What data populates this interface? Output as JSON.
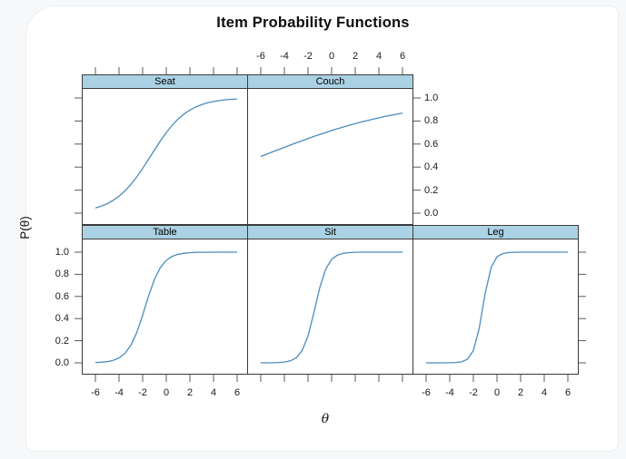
{
  "chart_data": {
    "type": "line",
    "title": "Item Probability Functions",
    "xlabel": "θ",
    "ylabel": "P(θ)",
    "x_tick_labels": [
      "-6",
      "-4",
      "-2",
      "0",
      "2",
      "4",
      "6"
    ],
    "x_tick_values": [
      -6,
      -4,
      -2,
      0,
      2,
      4,
      6
    ],
    "y_tick_labels_top_to_bottom": [
      "1.0",
      "0.8",
      "0.6",
      "0.4",
      "0.2",
      "0.0"
    ],
    "y_tick_values_top_to_bottom": [
      1.0,
      0.8,
      0.6,
      0.4,
      0.2,
      0.0
    ],
    "xlim": [
      -7.1,
      7.1
    ],
    "ylim": [
      -0.11,
      1.11
    ],
    "grid": false,
    "legend": "none",
    "layout": {
      "rows": 2,
      "cols": 3,
      "top_row_panels": [
        "Seat",
        "Couch"
      ],
      "bottom_row_panels": [
        "Table",
        "Sit",
        "Leg"
      ],
      "top_axis_labeled_column": 1,
      "bottom_axis_labeled_columns": [
        0,
        2
      ]
    },
    "strip_fill": "#abd2e4",
    "line_color": "#4b8cbc",
    "theta": [
      -6,
      -5.5,
      -5,
      -4.5,
      -4,
      -3.5,
      -3,
      -2.5,
      -2,
      -1.5,
      -1,
      -0.5,
      0,
      0.5,
      1,
      1.5,
      2,
      2.5,
      3,
      3.5,
      4,
      4.5,
      5,
      5.5,
      6
    ],
    "panels": [
      {
        "name": "Seat",
        "row": 0,
        "col": 0,
        "p": [
          0.045,
          0.061,
          0.083,
          0.111,
          0.147,
          0.193,
          0.249,
          0.314,
          0.388,
          0.468,
          0.548,
          0.627,
          0.7,
          0.763,
          0.817,
          0.861,
          0.895,
          0.922,
          0.942,
          0.958,
          0.969,
          0.977,
          0.984,
          0.988,
          0.991
        ]
      },
      {
        "name": "Couch",
        "row": 0,
        "col": 1,
        "p": [
          0.492,
          0.512,
          0.532,
          0.552,
          0.571,
          0.591,
          0.61,
          0.629,
          0.647,
          0.666,
          0.683,
          0.7,
          0.717,
          0.733,
          0.748,
          0.763,
          0.777,
          0.791,
          0.803,
          0.816,
          0.827,
          0.839,
          0.849,
          0.859,
          0.869
        ]
      },
      {
        "name": "Table",
        "row": 1,
        "col": 0,
        "p": [
          0.003,
          0.006,
          0.011,
          0.022,
          0.044,
          0.085,
          0.157,
          0.273,
          0.43,
          0.604,
          0.754,
          0.861,
          0.926,
          0.962,
          0.981,
          0.99,
          0.995,
          0.998,
          0.999,
          0.999,
          1.0,
          1.0,
          1.0,
          1.0,
          1.0
        ]
      },
      {
        "name": "Sit",
        "row": 1,
        "col": 1,
        "p": [
          0.0,
          0.0,
          0.001,
          0.003,
          0.007,
          0.018,
          0.046,
          0.11,
          0.242,
          0.453,
          0.681,
          0.847,
          0.935,
          0.974,
          0.99,
          0.996,
          0.999,
          1.0,
          1.0,
          1.0,
          1.0,
          1.0,
          1.0,
          1.0,
          1.0
        ]
      },
      {
        "name": "Leg",
        "row": 1,
        "col": 2,
        "p": [
          0.0,
          0.0,
          0.0,
          0.0,
          0.001,
          0.003,
          0.009,
          0.033,
          0.111,
          0.314,
          0.627,
          0.861,
          0.958,
          0.988,
          0.997,
          0.999,
          1.0,
          1.0,
          1.0,
          1.0,
          1.0,
          1.0,
          1.0,
          1.0,
          1.0
        ]
      }
    ]
  }
}
